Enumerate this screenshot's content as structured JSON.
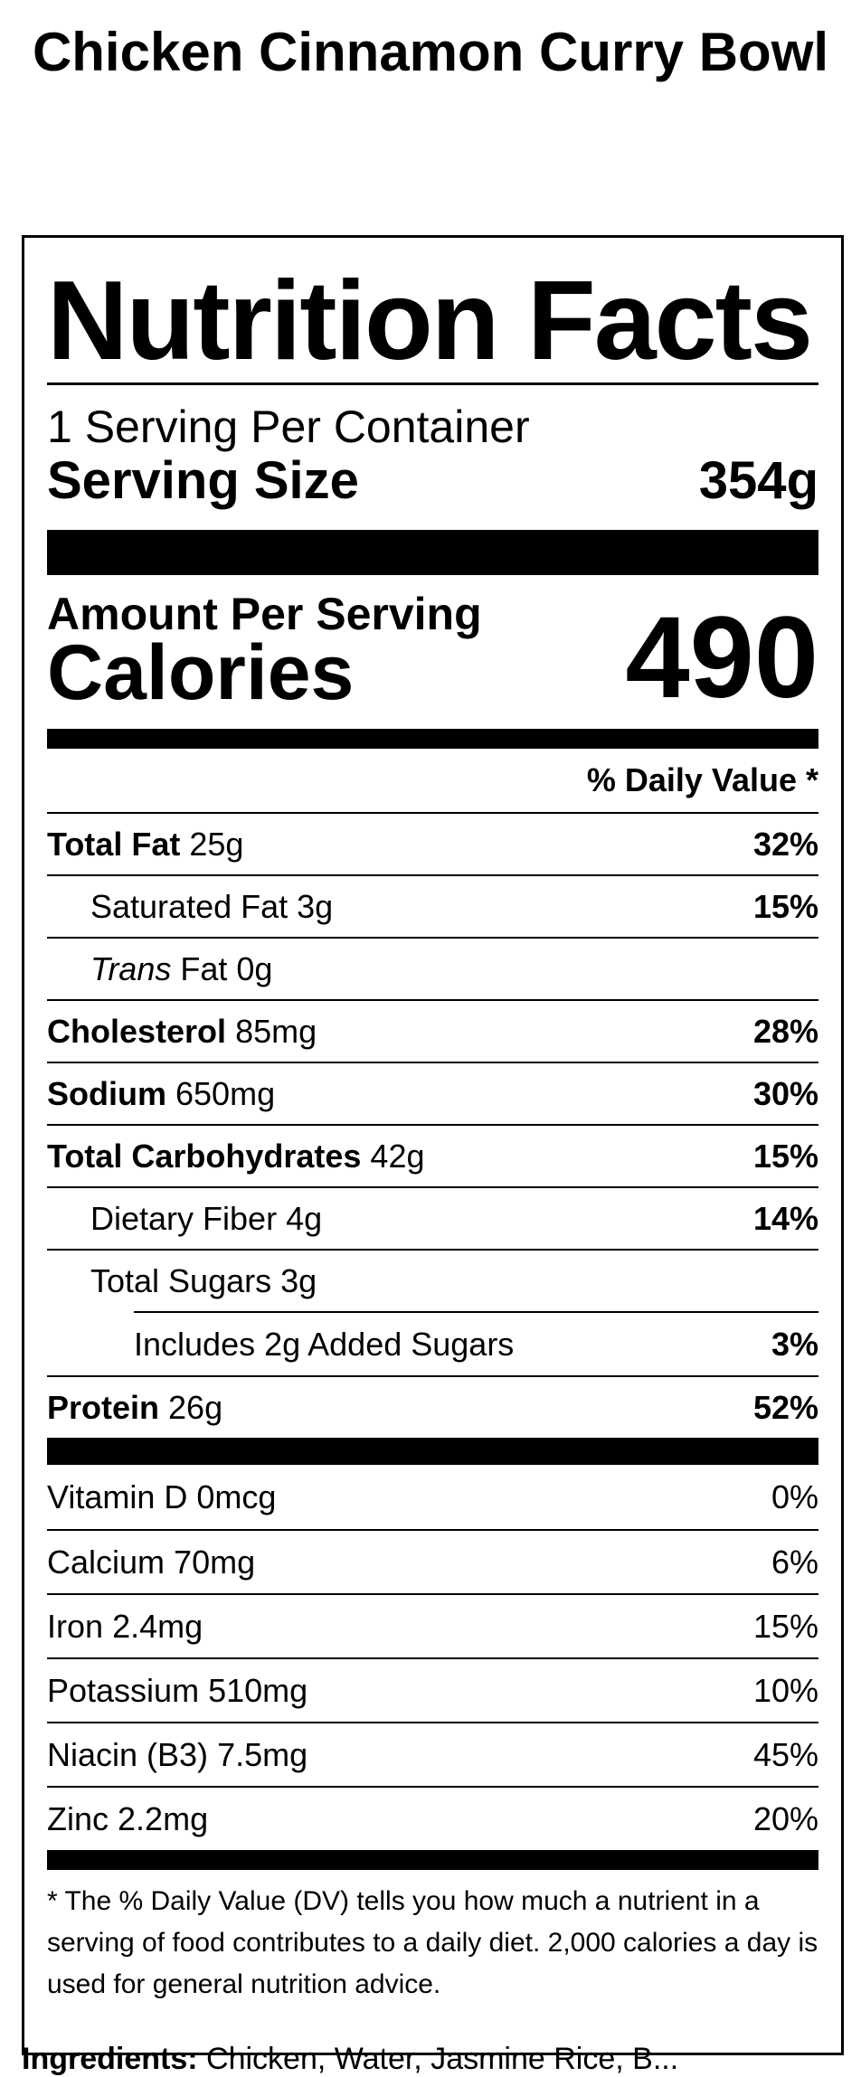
{
  "product": {
    "title": "Chicken Cinnamon Curry Bowl"
  },
  "label": {
    "heading": "Nutrition Facts",
    "servings_per_container": "1 Serving Per Container",
    "serving_size_label": "Serving Size",
    "serving_size_value": "354g",
    "amount_per_serving": "Amount Per Serving",
    "calories_label": "Calories",
    "calories_value": "490",
    "daily_value_header": "% Daily Value *"
  },
  "nutrients": [
    {
      "name": "Total Fat",
      "amount": "25g",
      "dv": "32%"
    },
    {
      "name": "Saturated Fat",
      "amount": "3g",
      "dv": "15%"
    },
    {
      "name_italic": "Trans",
      "name": "Fat",
      "amount": "0g",
      "dv": ""
    },
    {
      "name": "Cholesterol",
      "amount": "85mg",
      "dv": "28%"
    },
    {
      "name": "Sodium",
      "amount": "650mg",
      "dv": "30%"
    },
    {
      "name": "Total Carbohydrates",
      "amount": "42g",
      "dv": "15%"
    },
    {
      "name": "Dietary Fiber",
      "amount": "4g",
      "dv": "14%"
    },
    {
      "name": "Total Sugars",
      "amount": "3g",
      "dv": ""
    },
    {
      "name": "Includes 2g Added Sugars",
      "amount": "",
      "dv": "3%"
    },
    {
      "name": "Protein",
      "amount": "26g",
      "dv": "52%"
    }
  ],
  "vitamins": [
    {
      "name": "Vitamin D",
      "amount": "0mcg",
      "dv": "0%"
    },
    {
      "name": "Calcium",
      "amount": "70mg",
      "dv": "6%"
    },
    {
      "name": "Iron",
      "amount": "2.4mg",
      "dv": "15%"
    },
    {
      "name": "Potassium",
      "amount": "510mg",
      "dv": "10%"
    },
    {
      "name": "Niacin (B3)",
      "amount": "7.5mg",
      "dv": "45%"
    },
    {
      "name": "Zinc",
      "amount": "2.2mg",
      "dv": "20%"
    }
  ],
  "footnote": "* The % Daily Value (DV) tells you how much a nutrient in a serving of food contributes to a daily diet. 2,000 calories a day is used for general nutrition advice.",
  "ingredients": {
    "label": "Ingredients:",
    "text": "Chicken, Water, Jasmine Rice, B..."
  }
}
